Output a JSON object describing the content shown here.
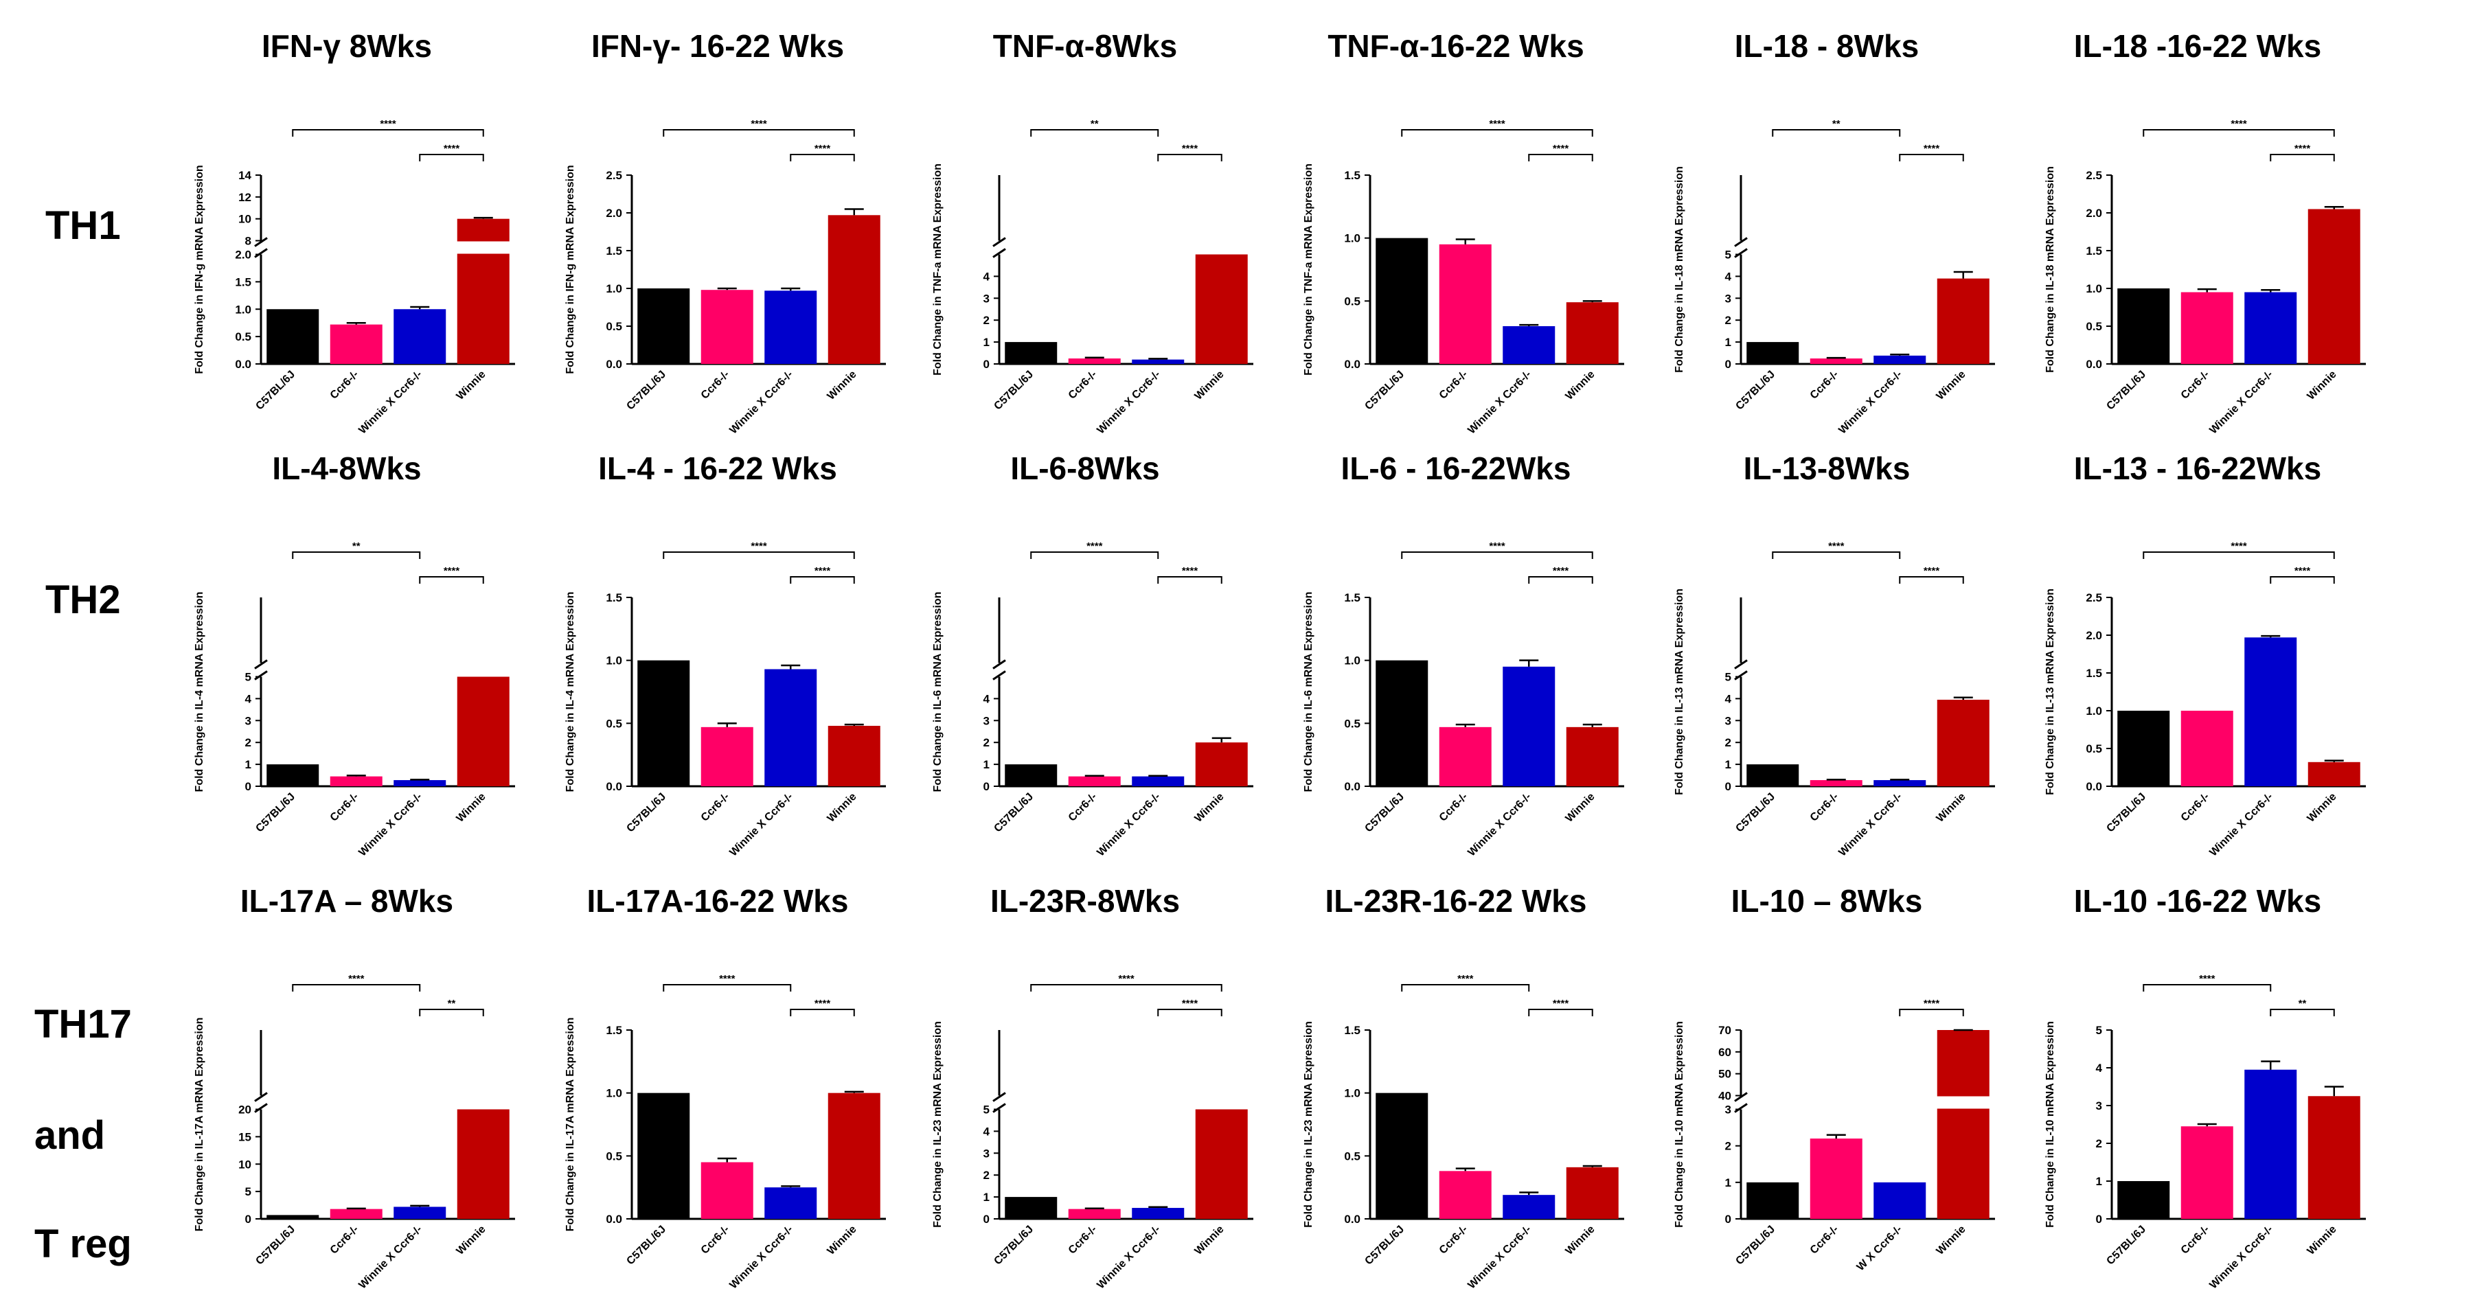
{
  "row_labels": [
    "TH1",
    "TH2",
    "TH17",
    "and",
    "T reg"
  ],
  "series_colors": [
    "#000000",
    "#ff0066",
    "#0000cc",
    "#c00000"
  ],
  "chart_data": [
    {
      "type": "bar",
      "title": "IFN-γ 8Wks",
      "ylabel": "Fold Change in IFN-g mRNA Expression",
      "categories": [
        "C57BL/6J",
        "Ccr6-/-",
        "Winnie X Ccr6-/-",
        "Winnie"
      ],
      "values": [
        1.0,
        0.72,
        1.0,
        10.0
      ],
      "errors": [
        0,
        0.03,
        0.04,
        0.1
      ],
      "ybreak": {
        "low": [
          0,
          2.0
        ],
        "high": [
          8,
          14
        ],
        "low_ticks": [
          "0.0",
          "0.5",
          "1.0",
          "1.5",
          "2.0"
        ],
        "high_ticks": [
          "8",
          "10",
          "12",
          "14"
        ]
      },
      "brackets": [
        {
          "from": 0,
          "to": 3,
          "label": "****"
        },
        {
          "from": 2,
          "to": 3,
          "label": "****"
        }
      ]
    },
    {
      "type": "bar",
      "title": "IFN-γ- 16-22 Wks",
      "ylabel": "Fold Change in IFN-g mRNA Expression",
      "categories": [
        "C57BL/6J",
        "Ccr6-/-",
        "Winnie X Ccr6-/-",
        "Winnie"
      ],
      "values": [
        1.0,
        0.98,
        0.97,
        1.97
      ],
      "errors": [
        0,
        0.02,
        0.03,
        0.08
      ],
      "ylim": [
        0,
        2.5
      ],
      "yticks": [
        "0.0",
        "0.5",
        "1.0",
        "1.5",
        "2.0",
        "2.5"
      ],
      "brackets": [
        {
          "from": 0,
          "to": 3,
          "label": "****"
        },
        {
          "from": 2,
          "to": 3,
          "label": "****"
        }
      ]
    },
    {
      "type": "bar",
      "title": "TNF-α-8Wks",
      "ylabel": "Fold Change in TNF-a mRNA Expression",
      "categories": [
        "C57BL/6J",
        "Ccr6-/-",
        "Winnie X Ccr6-/-",
        "Winnie"
      ],
      "values": [
        1.0,
        0.25,
        0.2,
        5.0
      ],
      "errors": [
        0,
        0.04,
        0.04,
        0
      ],
      "ybreak": {
        "low": [
          0,
          5
        ],
        "high": [
          5,
          48
        ],
        "low_ticks": [
          "0",
          "1",
          "2",
          "3",
          "4"
        ],
        "high_ticks": []
      },
      "brackets": [
        {
          "from": 0,
          "to": 2,
          "label": "**"
        },
        {
          "from": 2,
          "to": 3,
          "label": "****"
        }
      ]
    },
    {
      "type": "bar",
      "title": "TNF-α-16-22 Wks",
      "ylabel": "Fold Change in TNF-a mRNA Expression",
      "categories": [
        "C57BL/6J",
        "Ccr6-/-",
        "Winnie X Ccr6-/-",
        "Winnie"
      ],
      "values": [
        1.0,
        0.95,
        0.3,
        0.49
      ],
      "errors": [
        0,
        0.04,
        0.01,
        0.01
      ],
      "ylim": [
        0,
        1.5
      ],
      "yticks": [
        "0.0",
        "0.5",
        "1.0",
        "1.5"
      ],
      "brackets": [
        {
          "from": 0,
          "to": 3,
          "label": "****"
        },
        {
          "from": 2,
          "to": 3,
          "label": "****"
        }
      ]
    },
    {
      "type": "bar",
      "title": "IL-18 - 8Wks",
      "ylabel": "Fold Change in IL-18 mRNA Expression",
      "categories": [
        "C57BL/6J",
        "Ccr6-/-",
        "Winnie X Ccr6-/-",
        "Winnie"
      ],
      "values": [
        1.0,
        0.25,
        0.38,
        3.9
      ],
      "errors": [
        0,
        0.03,
        0.05,
        0.3
      ],
      "ybreak": {
        "low": [
          0,
          5
        ],
        "high": [
          5,
          40
        ],
        "low_ticks": [
          "0",
          "1",
          "2",
          "3",
          "4",
          "5"
        ],
        "high_ticks": []
      },
      "brackets": [
        {
          "from": 0,
          "to": 2,
          "label": "**"
        },
        {
          "from": 2,
          "to": 3,
          "label": "****"
        }
      ]
    },
    {
      "type": "bar",
      "title": "IL-18 -16-22 Wks",
      "ylabel": "Fold Change in IL-18 mRNA Expression",
      "categories": [
        "C57BL/6J",
        "Ccr6-/-",
        "Winnie X Ccr6-/-",
        "Winnie"
      ],
      "values": [
        1.0,
        0.95,
        0.95,
        2.05
      ],
      "errors": [
        0,
        0.04,
        0.03,
        0.03
      ],
      "ylim": [
        0,
        2.5
      ],
      "yticks": [
        "0.0",
        "0.5",
        "1.0",
        "1.5",
        "2.0",
        "2.5"
      ],
      "brackets": [
        {
          "from": 0,
          "to": 3,
          "label": "****"
        },
        {
          "from": 2,
          "to": 3,
          "label": "****"
        }
      ]
    },
    {
      "type": "bar",
      "title": "IL-4-8Wks",
      "ylabel": "Fold Change in IL-4 mRNA Expression",
      "categories": [
        "C57BL/6J",
        "Ccr6-/-",
        "Winnie X Ccr6-/-",
        "Winnie"
      ],
      "values": [
        1.0,
        0.45,
        0.28,
        5.0
      ],
      "errors": [
        0,
        0.04,
        0.02,
        0
      ],
      "ybreak": {
        "low": [
          0,
          5
        ],
        "high": [
          5,
          40
        ],
        "low_ticks": [
          "0",
          "1",
          "2",
          "3",
          "4",
          "5"
        ],
        "high_ticks": []
      },
      "brackets": [
        {
          "from": 0,
          "to": 2,
          "label": "**"
        },
        {
          "from": 2,
          "to": 3,
          "label": "****"
        }
      ]
    },
    {
      "type": "bar",
      "title": "IL-4 - 16-22 Wks",
      "ylabel": "Fold Change in IL-4 mRNA Expression",
      "categories": [
        "C57BL/6J",
        "Ccr6-/-",
        "Winnie X Ccr6-/-",
        "Winnie"
      ],
      "values": [
        1.0,
        0.47,
        0.93,
        0.48
      ],
      "errors": [
        0,
        0.03,
        0.03,
        0.01
      ],
      "ylim": [
        0,
        1.5
      ],
      "yticks": [
        "0.0",
        "0.5",
        "1.0",
        "1.5"
      ],
      "brackets": [
        {
          "from": 0,
          "to": 3,
          "label": "****"
        },
        {
          "from": 2,
          "to": 3,
          "label": "****"
        }
      ]
    },
    {
      "type": "bar",
      "title": "IL-6-8Wks",
      "ylabel": "Fold Change in IL-6 mRNA Expression",
      "categories": [
        "C57BL/6J",
        "Ccr6-/-",
        "Winnie X Ccr6-/-",
        "Winnie"
      ],
      "values": [
        1.0,
        0.45,
        0.45,
        2.0
      ],
      "errors": [
        0,
        0.03,
        0.03,
        0.2
      ],
      "ybreak": {
        "low": [
          0,
          5
        ],
        "high": [
          5,
          40
        ],
        "low_ticks": [
          "0",
          "1",
          "2",
          "3",
          "4"
        ],
        "high_ticks": []
      },
      "brackets": [
        {
          "from": 0,
          "to": 2,
          "label": "****"
        },
        {
          "from": 2,
          "to": 3,
          "label": "****"
        }
      ]
    },
    {
      "type": "bar",
      "title": "IL-6 - 16-22Wks",
      "ylabel": "Fold Change in IL-6 mRNA Expression",
      "categories": [
        "C57BL/6J",
        "Ccr6-/-",
        "Winnie X Ccr6-/-",
        "Winnie"
      ],
      "values": [
        1.0,
        0.47,
        0.95,
        0.47
      ],
      "errors": [
        0,
        0.02,
        0.05,
        0.02
      ],
      "ylim": [
        0,
        1.5
      ],
      "yticks": [
        "0.0",
        "0.5",
        "1.0",
        "1.5"
      ],
      "brackets": [
        {
          "from": 0,
          "to": 3,
          "label": "****"
        },
        {
          "from": 2,
          "to": 3,
          "label": "****"
        }
      ]
    },
    {
      "type": "bar",
      "title": "IL-13-8Wks",
      "ylabel": "Fold Change in IL-13 mRNA Expression",
      "categories": [
        "C57BL/6J",
        "Ccr6-/-",
        "Winnie X Ccr6-/-",
        "Winnie"
      ],
      "values": [
        1.0,
        0.28,
        0.28,
        3.95
      ],
      "errors": [
        0,
        0.02,
        0.02,
        0.1
      ],
      "ybreak": {
        "low": [
          0,
          5
        ],
        "high": [
          5,
          40
        ],
        "low_ticks": [
          "0",
          "1",
          "2",
          "3",
          "4",
          "5"
        ],
        "high_ticks": []
      },
      "brackets": [
        {
          "from": 0,
          "to": 2,
          "label": "****"
        },
        {
          "from": 2,
          "to": 3,
          "label": "****"
        }
      ]
    },
    {
      "type": "bar",
      "title": "IL-13 - 16-22Wks",
      "ylabel": "Fold Change in IL-13 mRNA Expression",
      "categories": [
        "C57BL/6J",
        "Ccr6-/-",
        "Winnie X Ccr6-/-",
        "Winnie"
      ],
      "values": [
        1.0,
        1.0,
        1.97,
        0.32
      ],
      "errors": [
        0,
        0,
        0.02,
        0.02
      ],
      "ylim": [
        0,
        2.5
      ],
      "yticks": [
        "0.0",
        "0.5",
        "1.0",
        "1.5",
        "2.0",
        "2.5"
      ],
      "brackets": [
        {
          "from": 0,
          "to": 3,
          "label": "****"
        },
        {
          "from": 2,
          "to": 3,
          "label": "****"
        }
      ]
    },
    {
      "type": "bar",
      "title": "IL-17A – 8Wks",
      "ylabel": "Fold Change in IL-17A mRNA Expression",
      "categories": [
        "C57BL/6J",
        "Ccr6-/-",
        "Winnie X Ccr6-/-",
        "Winnie"
      ],
      "values": [
        0.7,
        1.8,
        2.2,
        20.0
      ],
      "errors": [
        0,
        0.1,
        0.2,
        0
      ],
      "ybreak": {
        "low": [
          0,
          20
        ],
        "high": [
          20,
          40
        ],
        "low_ticks": [
          "0",
          "5",
          "10",
          "15",
          "20"
        ],
        "high_ticks": []
      },
      "brackets": [
        {
          "from": 0,
          "to": 2,
          "label": "****"
        },
        {
          "from": 2,
          "to": 3,
          "label": "**"
        }
      ]
    },
    {
      "type": "bar",
      "title": "IL-17A-16-22 Wks",
      "ylabel": "Fold Change in IL-17A mRNA Expression",
      "categories": [
        "C57BL/6J",
        "Ccr6-/-",
        "Winnie X Ccr6-/-",
        "Winnie"
      ],
      "values": [
        1.0,
        0.45,
        0.25,
        1.0
      ],
      "errors": [
        0,
        0.03,
        0.01,
        0.01
      ],
      "ylim": [
        0,
        1.5
      ],
      "yticks": [
        "0.0",
        "0.5",
        "1.0",
        "1.5"
      ],
      "brackets": [
        {
          "from": 0,
          "to": 2,
          "label": "****"
        },
        {
          "from": 2,
          "to": 3,
          "label": "****"
        }
      ]
    },
    {
      "type": "bar",
      "title": "IL-23R-8Wks",
      "ylabel": "Fold Change in IL-23 mRNA Expression",
      "categories": [
        "C57BL/6J",
        "Ccr6-/-",
        "Winnie X Ccr6-/-",
        "Winnie"
      ],
      "values": [
        1.0,
        0.45,
        0.5,
        5.0
      ],
      "errors": [
        0,
        0.03,
        0.04,
        0
      ],
      "ybreak": {
        "low": [
          0,
          5
        ],
        "high": [
          5,
          40
        ],
        "low_ticks": [
          "0",
          "1",
          "2",
          "3",
          "4",
          "5"
        ],
        "high_ticks": []
      },
      "brackets": [
        {
          "from": 0,
          "to": 3,
          "label": "****"
        },
        {
          "from": 2,
          "to": 3,
          "label": "****"
        }
      ]
    },
    {
      "type": "bar",
      "title": "IL-23R-16-22 Wks",
      "ylabel": "Fold Change in IL-23 mRNA Expression",
      "categories": [
        "C57BL/6J",
        "Ccr6-/-",
        "Winnie X Ccr6-/-",
        "Winnie"
      ],
      "values": [
        1.0,
        0.38,
        0.19,
        0.41
      ],
      "errors": [
        0,
        0.02,
        0.02,
        0.01
      ],
      "ylim": [
        0,
        1.5
      ],
      "yticks": [
        "0.0",
        "0.5",
        "1.0",
        "1.5"
      ],
      "brackets": [
        {
          "from": 0,
          "to": 2,
          "label": "****"
        },
        {
          "from": 2,
          "to": 3,
          "label": "****"
        }
      ]
    },
    {
      "type": "bar",
      "title": "IL-10 – 8Wks",
      "ylabel": "Fold Change in IL-10 mRNA Expression",
      "categories": [
        "C57BL/6J",
        "Ccr6-/-",
        "W X Ccr6-/-",
        "Winnie"
      ],
      "values": [
        1.0,
        2.2,
        1.0,
        71.0
      ],
      "errors": [
        0,
        0.1,
        0,
        0.3
      ],
      "ybreak": {
        "low": [
          0,
          3
        ],
        "high": [
          40,
          70
        ],
        "low_ticks": [
          "0",
          "1",
          "2",
          "3"
        ],
        "high_ticks": [
          "40",
          "50",
          "60",
          "70"
        ]
      },
      "brackets": [
        {
          "from": 2,
          "to": 3,
          "label": "****"
        }
      ]
    },
    {
      "type": "bar",
      "title": "IL-10 -16-22 Wks",
      "ylabel": "Fold Change in IL-10 mRNA Expression",
      "categories": [
        "C57BL/6J",
        "Ccr6-/-",
        "Winnie X Ccr6-/-",
        "Winnie"
      ],
      "values": [
        1.0,
        2.45,
        3.95,
        3.25
      ],
      "errors": [
        0,
        0.06,
        0.22,
        0.25
      ],
      "ylim": [
        0,
        5
      ],
      "yticks": [
        "0",
        "1",
        "2",
        "3",
        "4",
        "5"
      ],
      "brackets": [
        {
          "from": 0,
          "to": 2,
          "label": "****"
        },
        {
          "from": 2,
          "to": 3,
          "label": "**"
        }
      ]
    }
  ]
}
